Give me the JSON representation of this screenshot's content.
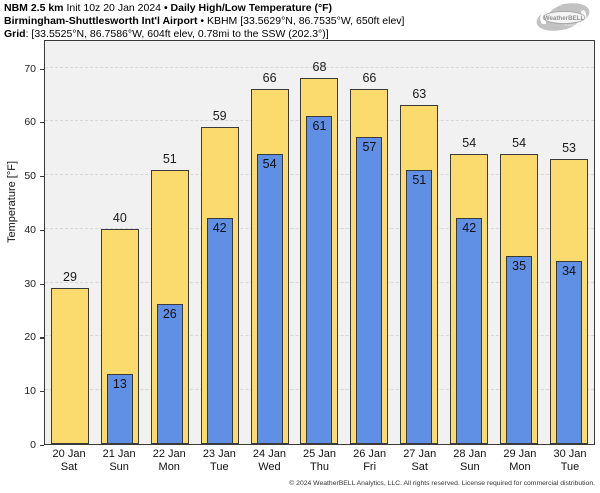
{
  "header": {
    "line1_bold1": "NBM 2.5 km",
    "line1_regular": " Init 10z 20 Jan 2024 ",
    "line1_bold2": "• Daily High/Low Temperature (°F)",
    "line2_bold": "Birmingham-Shuttlesworth Int'l Airport",
    "line2_regular": " • KBHM [33.5629°N, 86.7535°W, 650ft elev]",
    "line3_bold": "Grid",
    "line3_regular": ": [33.5525°N, 86.7586°W, 604ft elev, 0.78mi to the SSW (202.3°)]"
  },
  "logo": {
    "name": "WeatherBELL",
    "sub": "Analytics LLC"
  },
  "chart_data": {
    "type": "bar",
    "title": "NBM 2.5 km Init 10z 20 Jan 2024 • Daily High/Low Temperature (°F)",
    "subtitle": "Birmingham-Shuttlesworth Int'l Airport • KBHM [33.5629°N, 86.7535°W, 650ft elev]",
    "grid_point": "Grid: [33.5525°N, 86.7586°W, 604ft elev, 0.78mi to the SSW (202.3°)]",
    "categories": [
      {
        "date": "20 Jan",
        "day": "Sat"
      },
      {
        "date": "21 Jan",
        "day": "Sun"
      },
      {
        "date": "22 Jan",
        "day": "Mon"
      },
      {
        "date": "23 Jan",
        "day": "Tue"
      },
      {
        "date": "24 Jan",
        "day": "Wed"
      },
      {
        "date": "25 Jan",
        "day": "Thu"
      },
      {
        "date": "26 Jan",
        "day": "Fri"
      },
      {
        "date": "27 Jan",
        "day": "Sat"
      },
      {
        "date": "28 Jan",
        "day": "Sun"
      },
      {
        "date": "29 Jan",
        "day": "Mon"
      },
      {
        "date": "30 Jan",
        "day": "Tue"
      }
    ],
    "series": [
      {
        "name": "Daily High",
        "color": "#FBDA6E",
        "values": [
          29,
          40,
          51,
          59,
          66,
          68,
          66,
          63,
          54,
          54,
          53
        ]
      },
      {
        "name": "Daily Low",
        "color": "#6090E5",
        "values": [
          null,
          13,
          26,
          42,
          54,
          61,
          57,
          51,
          42,
          35,
          34
        ]
      }
    ],
    "xlabel": "",
    "ylabel": "Temperature [°F]",
    "yticks": [
      0,
      10,
      20,
      30,
      40,
      50,
      60,
      70
    ],
    "ylim": [
      0,
      75.3
    ],
    "grid": "horizontal-dashed",
    "legend_position": "none",
    "plot_background": "#f1f1f1",
    "bar_edge_color": "#3a3a3a"
  },
  "footer": "© 2024 WeatherBELL Analytics, LLC. All rights reserved. License required for commercial distribution."
}
